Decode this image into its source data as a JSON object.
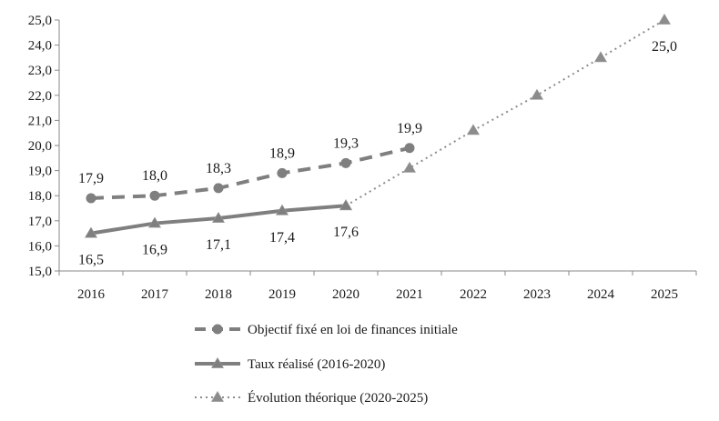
{
  "chart_data": {
    "type": "line",
    "categories": [
      "2016",
      "2017",
      "2018",
      "2019",
      "2020",
      "2021",
      "2022",
      "2023",
      "2024",
      "2025"
    ],
    "ylim": [
      15.0,
      25.0
    ],
    "ytick_step": 1.0,
    "ytick_labels": [
      "15,0",
      "16,0",
      "17,0",
      "18,0",
      "19,0",
      "20,0",
      "21,0",
      "22,0",
      "23,0",
      "24,0",
      "25,0"
    ],
    "grid": false,
    "legend_position": "bottom-center",
    "series": [
      {
        "name": "Objectif fixé en loi de finances initiale",
        "style": "dashed",
        "marker": "circle",
        "color": "#7f7f7f",
        "x": [
          "2016",
          "2017",
          "2018",
          "2019",
          "2020",
          "2021"
        ],
        "values": [
          17.9,
          18.0,
          18.3,
          18.9,
          19.3,
          19.9
        ],
        "labels": [
          "17,9",
          "18,0",
          "18,3",
          "18,9",
          "19,3",
          "19,9"
        ],
        "label_position": "above"
      },
      {
        "name": "Taux réalisé (2016-2020)",
        "style": "solid",
        "marker": "triangle",
        "color": "#7f7f7f",
        "x": [
          "2016",
          "2017",
          "2018",
          "2019",
          "2020"
        ],
        "values": [
          16.5,
          16.9,
          17.1,
          17.4,
          17.6
        ],
        "labels": [
          "16,5",
          "16,9",
          "17,1",
          "17,4",
          "17,6"
        ],
        "label_position": "below"
      },
      {
        "name": "Évolution théorique (2020-2025)",
        "style": "dotted",
        "marker": "triangle",
        "color": "#8c8c8c",
        "x": [
          "2020",
          "2021",
          "2022",
          "2023",
          "2024",
          "2025"
        ],
        "values": [
          17.6,
          19.1,
          20.6,
          22.0,
          23.5,
          25.0
        ],
        "labels": [
          "",
          "",
          "",
          "",
          "",
          "25,0"
        ],
        "label_position": "below"
      }
    ]
  }
}
